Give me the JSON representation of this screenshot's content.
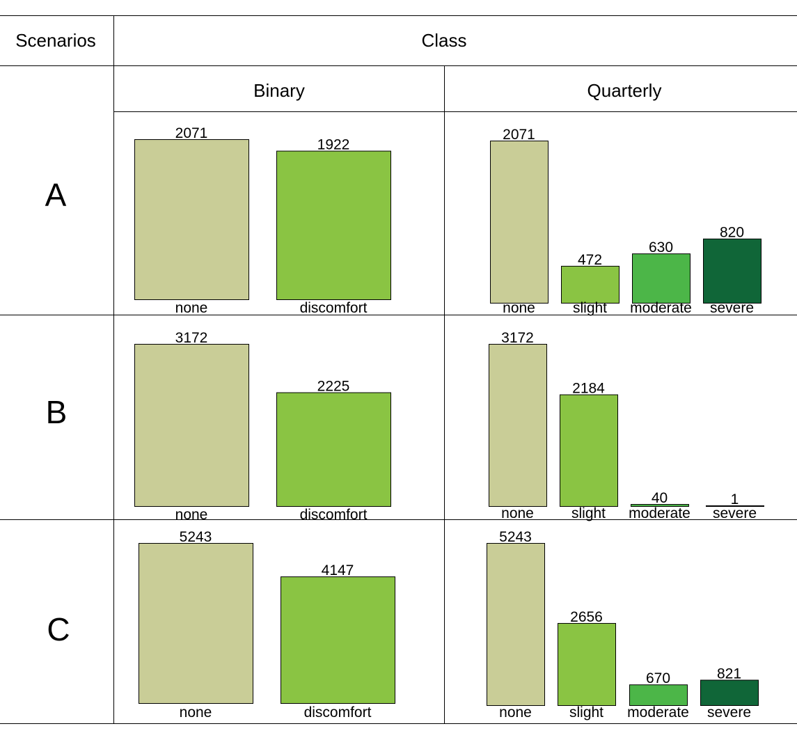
{
  "table": {
    "header_scenarios": "Scenarios",
    "header_class": "Class",
    "header_binary": "Binary",
    "header_quarterly": "Quarterly",
    "scenario_labels": [
      "A",
      "B",
      "C"
    ]
  },
  "colors": {
    "none": "#c9cd97",
    "slight": "#8ac443",
    "moderate": "#4cb648",
    "severe": "#106638",
    "discomfort": "#8ac443",
    "border": "#000000"
  },
  "chart_data": [
    {
      "type": "bar",
      "title": "Scenario A - Binary",
      "categories": [
        "none",
        "discomfort"
      ],
      "values": [
        2071,
        1922
      ],
      "ylim": [
        0,
        2071
      ]
    },
    {
      "type": "bar",
      "title": "Scenario A - Quarterly",
      "categories": [
        "none",
        "slight",
        "moderate",
        "severe"
      ],
      "values": [
        2071,
        472,
        630,
        820
      ],
      "ylim": [
        0,
        2071
      ]
    },
    {
      "type": "bar",
      "title": "Scenario B - Binary",
      "categories": [
        "none",
        "discomfort"
      ],
      "values": [
        3172,
        2225
      ],
      "ylim": [
        0,
        3172
      ]
    },
    {
      "type": "bar",
      "title": "Scenario B - Quarterly",
      "categories": [
        "none",
        "slight",
        "moderate",
        "severe"
      ],
      "values": [
        3172,
        2184,
        40,
        1
      ],
      "ylim": [
        0,
        3172
      ]
    },
    {
      "type": "bar",
      "title": "Scenario C - Binary",
      "categories": [
        "none",
        "discomfort"
      ],
      "values": [
        5243,
        4147
      ],
      "ylim": [
        0,
        5243
      ]
    },
    {
      "type": "bar",
      "title": "Scenario C - Quarterly",
      "categories": [
        "none",
        "slight",
        "moderate",
        "severe"
      ],
      "values": [
        5243,
        2656,
        670,
        821
      ],
      "ylim": [
        0,
        5243
      ]
    }
  ]
}
